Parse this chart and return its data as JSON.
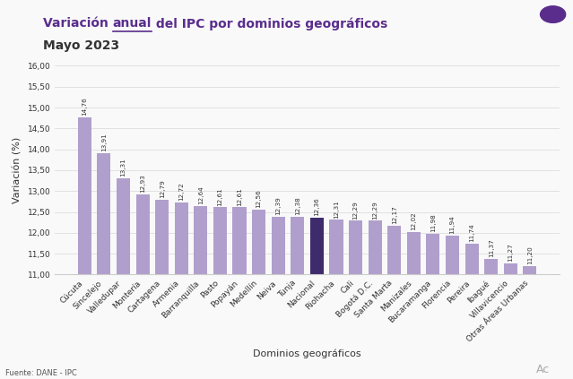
{
  "title_line1": "Variación anual del IPC por dominios geográficos",
  "title_line2": "Mayo 2023",
  "xlabel": "Dominios geográficos",
  "ylabel": "Variación (%)",
  "source": "Fuente: DANE - IPC",
  "categories": [
    "Cúcuta",
    "Sincelejo",
    "Valledupar",
    "Montería",
    "Cartagena",
    "Armenia",
    "Barranquilla",
    "Pasto",
    "Popayán",
    "Medellín",
    "Neiva",
    "Tunja",
    "Nacional",
    "Riohacha",
    "Cali",
    "Bogotá D.C.",
    "Santa Marta",
    "Manizales",
    "Bucaramanga",
    "Florencia",
    "Pereira",
    "Ibagué",
    "Villavicencio",
    "Otras Áreas Urbanas"
  ],
  "values": [
    14.76,
    13.91,
    13.31,
    12.93,
    12.79,
    12.72,
    12.64,
    12.61,
    12.61,
    12.56,
    12.39,
    12.38,
    12.36,
    12.31,
    12.29,
    12.29,
    12.17,
    12.02,
    11.98,
    11.94,
    11.74,
    11.37,
    11.27,
    11.2
  ],
  "bar_color_default": "#b09fcc",
  "bar_color_highlight": "#3d2b6b",
  "highlight_index": 12,
  "ylim_min": 11.0,
  "ylim_max": 16.0,
  "yticks": [
    11.0,
    11.5,
    12.0,
    12.5,
    13.0,
    13.5,
    14.0,
    14.5,
    15.0,
    15.5,
    16.0
  ],
  "bg_color": "#f9f9f9",
  "value_fontsize": 5.2,
  "axis_label_fontsize": 8,
  "tick_fontsize": 6.5,
  "title_fontsize": 10,
  "subtitle_fontsize": 10
}
